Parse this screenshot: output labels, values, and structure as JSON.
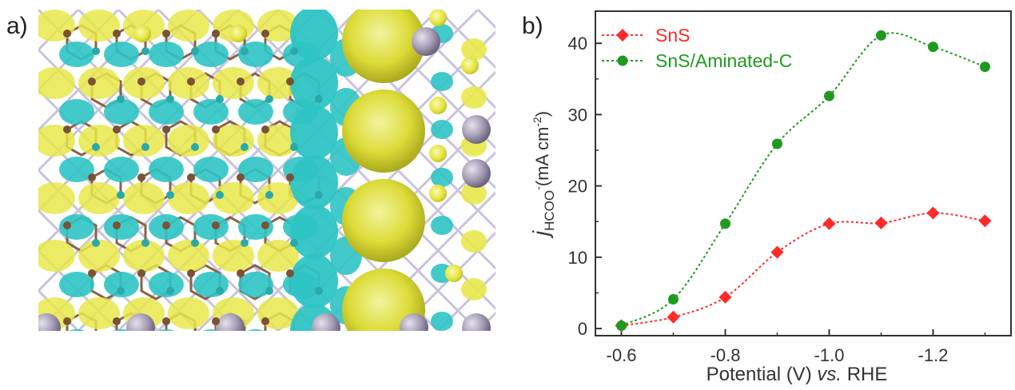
{
  "panels": {
    "a_label": "a)",
    "b_label": "b)"
  },
  "colors": {
    "cyan": "#2ec4c4",
    "yellow": "#e8e84a",
    "atom_gray": "#a49cb4",
    "bond_brown": "#8a6244",
    "snS": "#ff2a2a",
    "composite": "#1f9a1f"
  },
  "chart_data": {
    "type": "line",
    "x": [
      -0.6,
      -0.7,
      -0.8,
      -0.9,
      -1.0,
      -1.1,
      -1.2,
      -1.3
    ],
    "series": [
      {
        "name": "SnS",
        "color": "#ff2a2a",
        "marker": "diamond",
        "values": [
          0.4,
          1.6,
          4.4,
          10.7,
          14.7,
          14.8,
          16.2,
          15.1
        ]
      },
      {
        "name": "SnS/Aminated-C",
        "color": "#1f9a1f",
        "marker": "circle",
        "values": [
          0.4,
          4.1,
          14.7,
          25.9,
          32.6,
          41.1,
          39.5,
          36.7
        ]
      }
    ],
    "xlabel": {
      "main": "Potential (V) ",
      "italic": "vs.",
      "tail": " RHE"
    },
    "ylabel": {
      "j": "j",
      "sub": "HCOO",
      "sup1": "-",
      "unit": "(mA cm",
      "sup2": "-2",
      "close": ")"
    },
    "xticks": [
      "-0.6",
      "-0.8",
      "-1.0",
      "-1.2"
    ],
    "xtick_values": [
      -0.6,
      -0.8,
      -1.0,
      -1.2
    ],
    "yticks": [
      "0",
      "10",
      "20",
      "30",
      "40"
    ],
    "ytick_values": [
      0,
      10,
      20,
      30,
      40
    ],
    "xlim": [
      -0.55,
      -1.35
    ],
    "ylim": [
      -1,
      44.5
    ],
    "legend_position": "top-left",
    "grid": false
  }
}
